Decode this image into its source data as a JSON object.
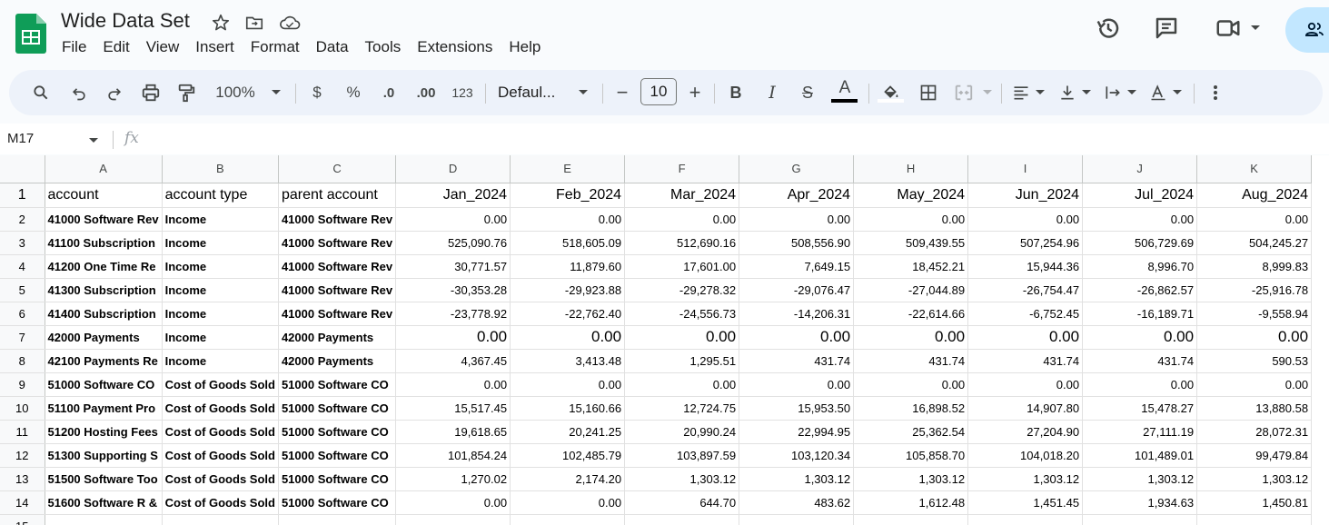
{
  "app": {
    "doc_title": "Wide Data Set",
    "menus": [
      "File",
      "Edit",
      "View",
      "Insert",
      "Format",
      "Data",
      "Tools",
      "Extensions",
      "Help"
    ]
  },
  "toolbar": {
    "zoom": "100%",
    "currency": "$",
    "percent": "%",
    "dec_decrease": ".0",
    "dec_increase": ".00",
    "number_format": "123",
    "font": "Defaul...",
    "font_size": "10",
    "minus": "−",
    "plus": "+",
    "bold": "B",
    "italic": "I",
    "strike": "S",
    "text_color_glyph": "A"
  },
  "formula_bar": {
    "name_box": "M17",
    "fx": "fx"
  },
  "sheet": {
    "columns": [
      "A",
      "B",
      "C",
      "D",
      "E",
      "F",
      "G",
      "H",
      "I",
      "J",
      "K"
    ],
    "header_row": [
      "account",
      "account type",
      "parent account",
      "Jan_2024",
      "Feb_2024",
      "Mar_2024",
      "Apr_2024",
      "May_2024",
      "Jun_2024",
      "Jul_2024",
      "Aug_2024"
    ],
    "rows": [
      [
        "41000 Software Rev",
        "Income",
        "41000 Software Rev",
        "0.00",
        "0.00",
        "0.00",
        "0.00",
        "0.00",
        "0.00",
        "0.00",
        "0.00"
      ],
      [
        "41100 Subscription",
        "Income",
        "41000 Software Rev",
        "525,090.76",
        "518,605.09",
        "512,690.16",
        "508,556.90",
        "509,439.55",
        "507,254.96",
        "506,729.69",
        "504,245.27"
      ],
      [
        "41200 One Time Re",
        "Income",
        "41000 Software Rev",
        "30,771.57",
        "11,879.60",
        "17,601.00",
        "7,649.15",
        "18,452.21",
        "15,944.36",
        "8,996.70",
        "8,999.83"
      ],
      [
        "41300 Subscription",
        "Income",
        "41000 Software Rev",
        "-30,353.28",
        "-29,923.88",
        "-29,278.32",
        "-29,076.47",
        "-27,044.89",
        "-26,754.47",
        "-26,862.57",
        "-25,916.78"
      ],
      [
        "41400 Subscription",
        "Income",
        "41000 Software Rev",
        "-23,778.92",
        "-22,762.40",
        "-24,556.73",
        "-14,206.31",
        "-22,614.66",
        "-6,752.45",
        "-16,189.71",
        "-9,558.94"
      ],
      [
        "42000 Payments",
        "Income",
        "42000 Payments",
        "0.00",
        "0.00",
        "0.00",
        "0.00",
        "0.00",
        "0.00",
        "0.00",
        "0.00"
      ],
      [
        "42100 Payments Re",
        "Income",
        "42000 Payments",
        "4,367.45",
        "3,413.48",
        "1,295.51",
        "431.74",
        "431.74",
        "431.74",
        "431.74",
        "590.53"
      ],
      [
        "51000 Software CO",
        "Cost of Goods Sold",
        "51000 Software CO",
        "0.00",
        "0.00",
        "0.00",
        "0.00",
        "0.00",
        "0.00",
        "0.00",
        "0.00"
      ],
      [
        "51100 Payment Pro",
        "Cost of Goods Sold",
        "51000 Software CO",
        "15,517.45",
        "15,160.66",
        "12,724.75",
        "15,953.50",
        "16,898.52",
        "14,907.80",
        "15,478.27",
        "13,880.58"
      ],
      [
        "51200 Hosting Fees",
        "Cost of Goods Sold",
        "51000 Software CO",
        "19,618.65",
        "20,241.25",
        "20,990.24",
        "22,994.95",
        "25,362.54",
        "27,204.90",
        "27,111.19",
        "28,072.31"
      ],
      [
        "51300 Supporting S",
        "Cost of Goods Sold",
        "51000 Software CO",
        "101,854.24",
        "102,485.79",
        "103,897.59",
        "103,120.34",
        "105,858.70",
        "104,018.20",
        "101,489.01",
        "99,479.84"
      ],
      [
        "51500 Software Too",
        "Cost of Goods Sold",
        "51000 Software CO",
        "1,270.02",
        "2,174.20",
        "1,303.12",
        "1,303.12",
        "1,303.12",
        "1,303.12",
        "1,303.12",
        "1,303.12"
      ],
      [
        "51600 Software R &",
        "Cost of Goods Sold",
        "51000 Software CO",
        "0.00",
        "0.00",
        "644.70",
        "483.62",
        "1,612.48",
        "1,451.45",
        "1,934.63",
        "1,450.81"
      ]
    ],
    "row_numbers": [
      "1",
      "2",
      "3",
      "4",
      "5",
      "6",
      "7",
      "8",
      "9",
      "10",
      "11",
      "12",
      "13",
      "14",
      "15"
    ]
  }
}
